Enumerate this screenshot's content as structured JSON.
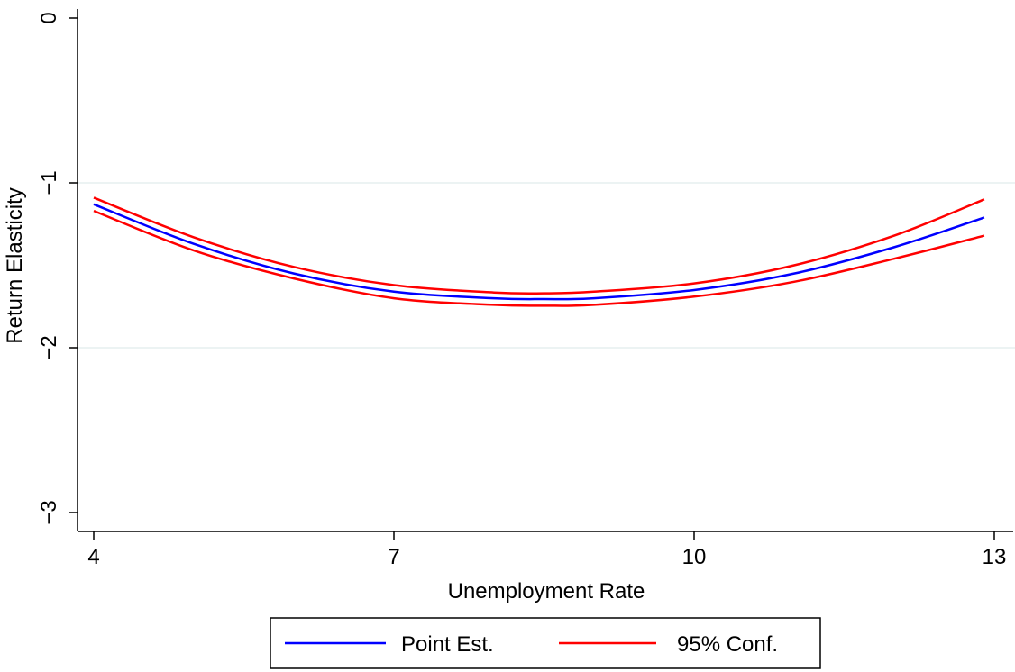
{
  "chart_data": {
    "type": "line",
    "title": "",
    "xlabel": "Unemployment Rate",
    "ylabel": "Return Elasticity",
    "xlim": [
      4,
      13
    ],
    "ylim": [
      -3,
      0
    ],
    "xticks": [
      4,
      7,
      10,
      13
    ],
    "xtick_labels": [
      "4",
      "7",
      "10",
      "13"
    ],
    "yticks": [
      0,
      -1,
      -2,
      -3
    ],
    "ytick_labels": [
      "0",
      "−1",
      "−2",
      "−3"
    ],
    "grid": "horizontal",
    "legend_position": "bottom",
    "series": [
      {
        "name": "Point Est.",
        "color": "#0000ff",
        "x": [
          4,
          5,
          6,
          7,
          8,
          8.5,
          9,
          10,
          11,
          12,
          12.9
        ],
        "y": [
          -1.13,
          -1.37,
          -1.55,
          -1.66,
          -1.7,
          -1.705,
          -1.7,
          -1.65,
          -1.55,
          -1.39,
          -1.21
        ]
      },
      {
        "name": "95% Conf.",
        "color": "#ff0000",
        "x": [
          4,
          5,
          6,
          7,
          8,
          8.5,
          9,
          10,
          11,
          12,
          12.9
        ],
        "y": [
          -1.09,
          -1.33,
          -1.51,
          -1.62,
          -1.665,
          -1.67,
          -1.66,
          -1.61,
          -1.5,
          -1.32,
          -1.1
        ]
      },
      {
        "name": "",
        "color": "#ff0000",
        "x": [
          4,
          5,
          6,
          7,
          8,
          8.5,
          9,
          10,
          11,
          12,
          12.9
        ],
        "y": [
          -1.17,
          -1.41,
          -1.58,
          -1.7,
          -1.74,
          -1.745,
          -1.74,
          -1.69,
          -1.6,
          -1.46,
          -1.32
        ]
      }
    ],
    "legend": [
      {
        "label": "Point Est.",
        "color": "#0000ff"
      },
      {
        "label": "95% Conf.",
        "color": "#ff0000"
      }
    ]
  }
}
